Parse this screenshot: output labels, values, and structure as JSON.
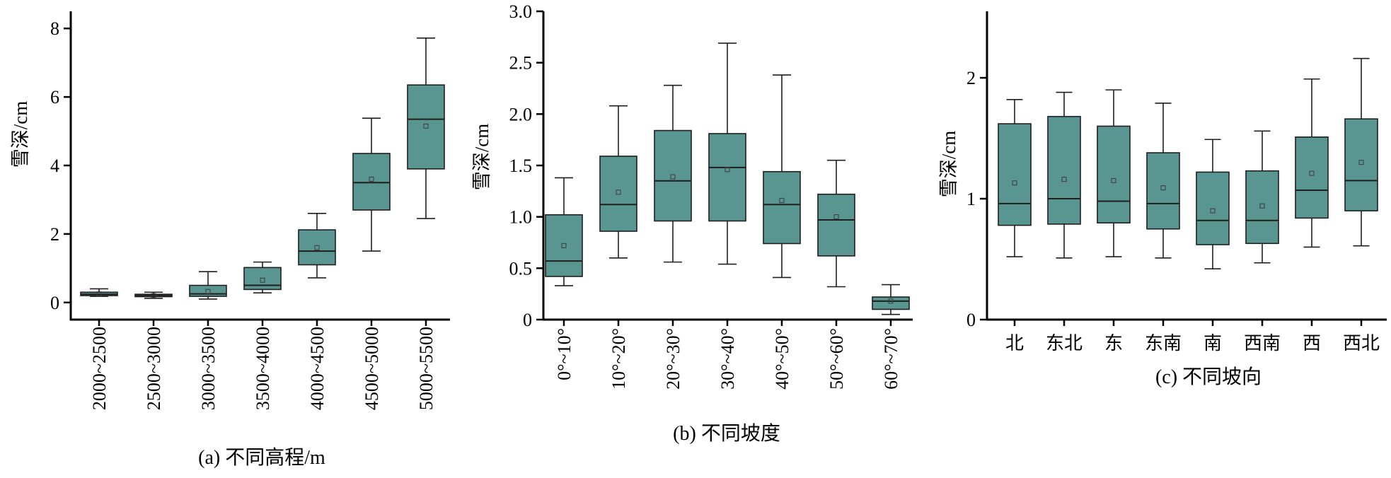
{
  "colors": {
    "box_fill": "#5a9691",
    "box_stroke": "#1f1f1f",
    "axis": "#000000"
  },
  "chart_data": [
    {
      "type": "box",
      "caption": "(a) 不同高程/m",
      "ylabel": "雪深/cm",
      "ylim": [
        -0.5,
        8.5
      ],
      "yticks": [
        "0",
        "2",
        "4",
        "6",
        "8"
      ],
      "ytick_values": [
        0,
        2,
        4,
        6,
        8
      ],
      "categories": [
        "2000~2500",
        "2500~3000",
        "3000~3500",
        "3500~4000",
        "4000~4500",
        "4500~5000",
        "5000~5500"
      ],
      "boxes": [
        {
          "min": 0.18,
          "q1": 0.2,
          "median": 0.24,
          "q3": 0.3,
          "max": 0.4,
          "mean": 0.25
        },
        {
          "min": 0.12,
          "q1": 0.17,
          "median": 0.2,
          "q3": 0.24,
          "max": 0.3,
          "mean": 0.2
        },
        {
          "min": 0.1,
          "q1": 0.18,
          "median": 0.25,
          "q3": 0.5,
          "max": 0.9,
          "mean": 0.32
        },
        {
          "min": 0.28,
          "q1": 0.38,
          "median": 0.5,
          "q3": 1.02,
          "max": 1.18,
          "mean": 0.65
        },
        {
          "min": 0.72,
          "q1": 1.1,
          "median": 1.5,
          "q3": 2.12,
          "max": 2.6,
          "mean": 1.6
        },
        {
          "min": 1.5,
          "q1": 2.7,
          "median": 3.5,
          "q3": 4.35,
          "max": 5.38,
          "mean": 3.6
        },
        {
          "min": 2.45,
          "q1": 3.9,
          "median": 5.35,
          "q3": 6.35,
          "max": 7.72,
          "mean": 5.15
        }
      ]
    },
    {
      "type": "box",
      "caption": "(b) 不同坡度",
      "ylabel": "雪深/cm",
      "ylim": [
        0,
        3.0
      ],
      "yticks": [
        "0",
        "0.5",
        "1.0",
        "1.5",
        "2.0",
        "2.5",
        "3.0"
      ],
      "ytick_values": [
        0,
        0.5,
        1.0,
        1.5,
        2.0,
        2.5,
        3.0
      ],
      "categories": [
        "0°~10°",
        "10°~20°",
        "20°~30°",
        "30°~40°",
        "40°~50°",
        "50°~60°",
        "60°~70°"
      ],
      "boxes": [
        {
          "min": 0.33,
          "q1": 0.42,
          "median": 0.57,
          "q3": 1.02,
          "max": 1.38,
          "mean": 0.72
        },
        {
          "min": 0.6,
          "q1": 0.86,
          "median": 1.12,
          "q3": 1.59,
          "max": 2.08,
          "mean": 1.24
        },
        {
          "min": 0.56,
          "q1": 0.96,
          "median": 1.35,
          "q3": 1.84,
          "max": 2.28,
          "mean": 1.39
        },
        {
          "min": 0.54,
          "q1": 0.96,
          "median": 1.48,
          "q3": 1.81,
          "max": 2.69,
          "mean": 1.46
        },
        {
          "min": 0.41,
          "q1": 0.74,
          "median": 1.12,
          "q3": 1.44,
          "max": 2.38,
          "mean": 1.16
        },
        {
          "min": 0.32,
          "q1": 0.62,
          "median": 0.97,
          "q3": 1.22,
          "max": 1.55,
          "mean": 1.0
        },
        {
          "min": 0.05,
          "q1": 0.1,
          "median": 0.18,
          "q3": 0.22,
          "max": 0.34,
          "mean": 0.18
        }
      ]
    },
    {
      "type": "box",
      "caption": "(c) 不同坡向",
      "ylabel": "雪深/cm",
      "ylim": [
        0,
        2.55
      ],
      "yticks": [
        "0",
        "1",
        "2"
      ],
      "ytick_values": [
        0,
        1,
        2
      ],
      "categories": [
        "北",
        "东北",
        "东",
        "东南",
        "南",
        "西南",
        "西",
        "西北"
      ],
      "boxes": [
        {
          "min": 0.52,
          "q1": 0.78,
          "median": 0.96,
          "q3": 1.62,
          "max": 1.82,
          "mean": 1.13
        },
        {
          "min": 0.51,
          "q1": 0.79,
          "median": 1.0,
          "q3": 1.68,
          "max": 1.88,
          "mean": 1.16
        },
        {
          "min": 0.52,
          "q1": 0.8,
          "median": 0.98,
          "q3": 1.6,
          "max": 1.9,
          "mean": 1.15
        },
        {
          "min": 0.51,
          "q1": 0.75,
          "median": 0.96,
          "q3": 1.38,
          "max": 1.79,
          "mean": 1.09
        },
        {
          "min": 0.42,
          "q1": 0.62,
          "median": 0.82,
          "q3": 1.22,
          "max": 1.49,
          "mean": 0.9
        },
        {
          "min": 0.47,
          "q1": 0.63,
          "median": 0.82,
          "q3": 1.23,
          "max": 1.56,
          "mean": 0.94
        },
        {
          "min": 0.6,
          "q1": 0.84,
          "median": 1.07,
          "q3": 1.51,
          "max": 1.99,
          "mean": 1.21
        },
        {
          "min": 0.61,
          "q1": 0.9,
          "median": 1.15,
          "q3": 1.66,
          "max": 2.16,
          "mean": 1.3
        }
      ]
    }
  ]
}
